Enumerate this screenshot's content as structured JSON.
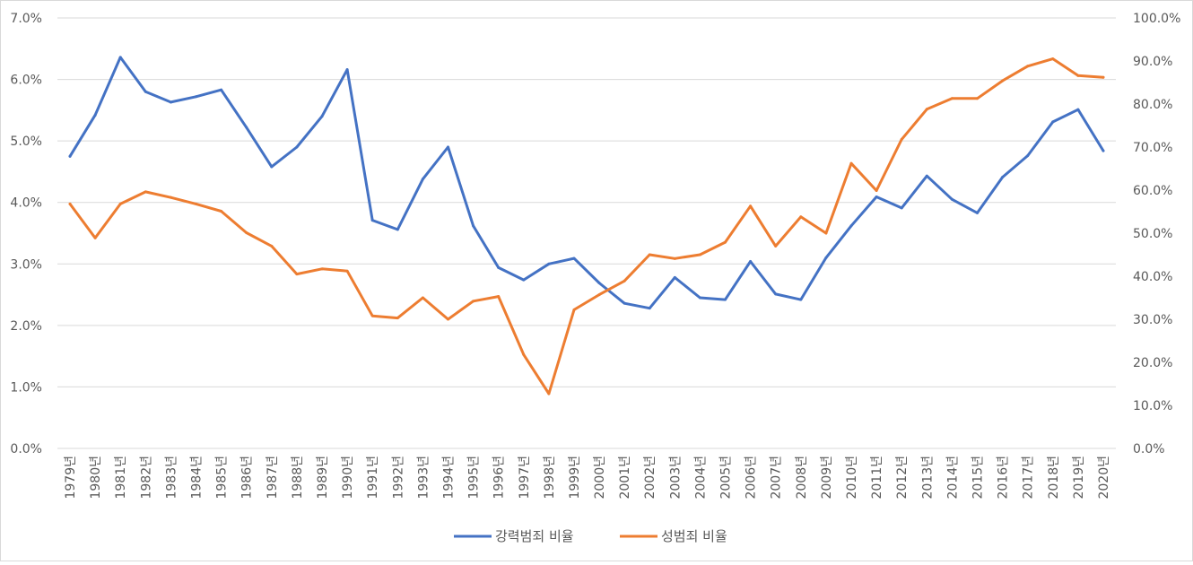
{
  "chart_data": {
    "type": "line",
    "categories": [
      "1979년",
      "1980년",
      "1981년",
      "1982년",
      "1983년",
      "1984년",
      "1985년",
      "1986년",
      "1987년",
      "1988년",
      "1989년",
      "1990년",
      "1991년",
      "1992년",
      "1993년",
      "1994년",
      "1995년",
      "1996년",
      "1997년",
      "1998년",
      "1999년",
      "2000년",
      "2001년",
      "2002년",
      "2003년",
      "2004년",
      "2005년",
      "2006년",
      "2007년",
      "2008년",
      "2009년",
      "2010년",
      "2011년",
      "2012년",
      "2013년",
      "2014년",
      "2015년",
      "2016년",
      "2017년",
      "2018년",
      "2019년",
      "2020년"
    ],
    "series": [
      {
        "name": "강력범죄 비율",
        "axis": "left",
        "color": "#4472C4",
        "values": [
          4.75,
          5.42,
          6.36,
          5.8,
          5.63,
          5.72,
          5.83,
          5.22,
          4.58,
          4.9,
          5.4,
          6.16,
          3.71,
          3.56,
          4.38,
          4.9,
          3.62,
          2.94,
          2.74,
          3.0,
          3.09,
          2.69,
          2.36,
          2.28,
          2.78,
          2.45,
          2.42,
          3.04,
          2.51,
          2.42,
          3.1,
          3.62,
          4.09,
          3.91,
          4.43,
          4.05,
          3.83,
          4.41,
          4.76,
          5.31,
          5.51,
          4.84
        ]
      },
      {
        "name": "성범죄 비율",
        "axis": "right",
        "color": "#ED7D31",
        "values": [
          56.8,
          48.9,
          56.8,
          59.6,
          58.3,
          56.8,
          55.1,
          50.1,
          47.0,
          40.5,
          41.7,
          41.2,
          30.8,
          30.3,
          35.0,
          30.0,
          34.2,
          35.3,
          21.8,
          12.7,
          32.2,
          35.7,
          38.9,
          45.0,
          44.1,
          45.0,
          47.9,
          56.3,
          47.0,
          53.8,
          50.0,
          66.2,
          59.9,
          71.8,
          78.8,
          81.3,
          81.3,
          85.4,
          88.8,
          90.5,
          86.6,
          86.2
        ]
      }
    ],
    "y_left": {
      "min": 0,
      "max": 7,
      "step": 1,
      "ticks": [
        "0.0%",
        "1.0%",
        "2.0%",
        "3.0%",
        "4.0%",
        "5.0%",
        "6.0%",
        "7.0%"
      ]
    },
    "y_right": {
      "min": 0,
      "max": 100,
      "step": 10,
      "ticks": [
        "0.0%",
        "10.0%",
        "20.0%",
        "30.0%",
        "40.0%",
        "50.0%",
        "60.0%",
        "70.0%",
        "80.0%",
        "90.0%",
        "100.0%"
      ]
    },
    "grid": true,
    "legend": "bottom"
  }
}
